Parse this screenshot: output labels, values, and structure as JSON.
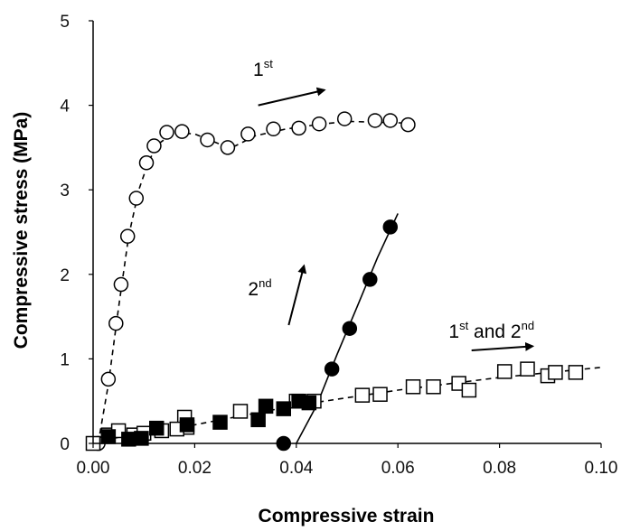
{
  "chart_data": {
    "type": "scatter",
    "xlabel": "Compressive strain",
    "ylabel": "Compressive stress (MPa)",
    "xlim": [
      0.0,
      0.1
    ],
    "ylim": [
      0,
      5
    ],
    "x_ticks": [
      "0.00",
      "0.02",
      "0.04",
      "0.06",
      "0.08",
      "0.10"
    ],
    "y_ticks": [
      "0",
      "1",
      "2",
      "3",
      "4",
      "5"
    ],
    "grid": false,
    "series": [
      {
        "marker": "open-circle",
        "line": "dashed",
        "color": "#000000",
        "points": [
          [
            0.001,
            0.0
          ],
          [
            0.003,
            0.76
          ],
          [
            0.0045,
            1.42
          ],
          [
            0.0055,
            1.88
          ],
          [
            0.0068,
            2.45
          ],
          [
            0.0085,
            2.9
          ],
          [
            0.0105,
            3.32
          ],
          [
            0.012,
            3.52
          ],
          [
            0.0145,
            3.68
          ],
          [
            0.0175,
            3.69
          ],
          [
            0.0225,
            3.59
          ],
          [
            0.0265,
            3.5
          ],
          [
            0.0305,
            3.66
          ],
          [
            0.0355,
            3.72
          ],
          [
            0.0405,
            3.73
          ],
          [
            0.0445,
            3.78
          ],
          [
            0.0495,
            3.84
          ],
          [
            0.0555,
            3.82
          ],
          [
            0.0585,
            3.82
          ],
          [
            0.062,
            3.77
          ]
        ],
        "fit": [
          [
            0.001,
            0.0
          ],
          [
            0.003,
            0.7
          ],
          [
            0.005,
            1.6
          ],
          [
            0.007,
            2.45
          ],
          [
            0.009,
            3.0
          ],
          [
            0.011,
            3.35
          ],
          [
            0.013,
            3.55
          ],
          [
            0.016,
            3.68
          ],
          [
            0.02,
            3.66
          ],
          [
            0.025,
            3.54
          ],
          [
            0.028,
            3.52
          ],
          [
            0.032,
            3.64
          ],
          [
            0.038,
            3.72
          ],
          [
            0.044,
            3.77
          ],
          [
            0.05,
            3.81
          ],
          [
            0.062,
            3.79
          ]
        ]
      },
      {
        "marker": "filled-circle",
        "line": "solid",
        "color": "#000000",
        "points": [
          [
            0.0375,
            0.0
          ],
          [
            0.047,
            0.88
          ],
          [
            0.0505,
            1.36
          ],
          [
            0.0545,
            1.94
          ],
          [
            0.0585,
            2.56
          ]
        ],
        "fit": [
          [
            0.04,
            0.0
          ],
          [
            0.044,
            0.45
          ],
          [
            0.048,
            1.05
          ],
          [
            0.052,
            1.62
          ],
          [
            0.056,
            2.2
          ],
          [
            0.06,
            2.72
          ]
        ]
      },
      {
        "marker": "open-square",
        "line": "dashed",
        "color": "#000000",
        "points": [
          [
            0.0,
            0.0
          ],
          [
            0.003,
            0.1
          ],
          [
            0.005,
            0.15
          ],
          [
            0.008,
            0.1
          ],
          [
            0.01,
            0.12
          ],
          [
            0.0135,
            0.15
          ],
          [
            0.018,
            0.31
          ],
          [
            0.0185,
            0.19
          ],
          [
            0.0165,
            0.17
          ],
          [
            0.029,
            0.38
          ],
          [
            0.04,
            0.5
          ],
          [
            0.0435,
            0.5
          ],
          [
            0.053,
            0.57
          ],
          [
            0.0565,
            0.58
          ],
          [
            0.063,
            0.67
          ],
          [
            0.067,
            0.67
          ],
          [
            0.072,
            0.71
          ],
          [
            0.074,
            0.63
          ],
          [
            0.081,
            0.85
          ],
          [
            0.0855,
            0.88
          ],
          [
            0.0895,
            0.8
          ],
          [
            0.091,
            0.84
          ],
          [
            0.095,
            0.84
          ]
        ],
        "fit": [
          [
            0.0,
            0.02
          ],
          [
            0.02,
            0.22
          ],
          [
            0.04,
            0.45
          ],
          [
            0.06,
            0.63
          ],
          [
            0.08,
            0.78
          ],
          [
            0.1,
            0.9
          ]
        ]
      },
      {
        "marker": "filled-square",
        "line": "none",
        "color": "#000000",
        "points": [
          [
            0.003,
            0.08
          ],
          [
            0.007,
            0.05
          ],
          [
            0.0095,
            0.06
          ],
          [
            0.0125,
            0.18
          ],
          [
            0.0185,
            0.22
          ],
          [
            0.025,
            0.25
          ],
          [
            0.0325,
            0.28
          ],
          [
            0.034,
            0.44
          ],
          [
            0.0375,
            0.41
          ],
          [
            0.0405,
            0.5
          ],
          [
            0.0425,
            0.48
          ]
        ],
        "fit": []
      }
    ],
    "annotations": [
      {
        "base": "1",
        "sup": "st",
        "rest": "",
        "x": 0.0315,
        "y": 4.35,
        "arrow_from": [
          0.0325,
          4.0
        ],
        "arrow_to": [
          0.0455,
          4.18
        ]
      },
      {
        "base": "2",
        "sup": "nd",
        "rest": "",
        "x": 0.0305,
        "y": 1.75,
        "arrow_from": [
          0.0385,
          1.4
        ],
        "arrow_to": [
          0.0415,
          2.1
        ]
      },
      {
        "base": "1",
        "sup": "st",
        "rest": " and 2",
        "sup2": "nd",
        "x": 0.07,
        "y": 1.25,
        "arrow_from": [
          0.0745,
          1.1
        ],
        "arrow_to": [
          0.0865,
          1.15
        ]
      }
    ]
  }
}
